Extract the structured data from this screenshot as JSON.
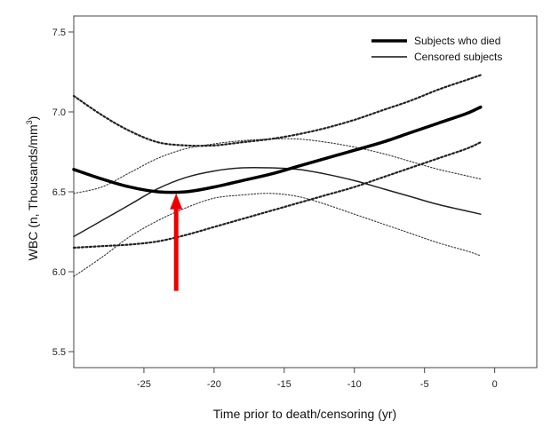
{
  "chart_data": {
    "type": "line",
    "title": "",
    "xlabel": "Time prior to death/censoring (yr)",
    "ylabel": "WBC (n, Thousands/mm³)",
    "ylabel_main": "WBC (n, Thousands/mm",
    "ylabel_sup": "3",
    "ylabel_close": ")",
    "xlim": [
      -30,
      3
    ],
    "ylim": [
      5.4,
      7.6
    ],
    "x_ticks": [
      -25,
      -20,
      -15,
      -10,
      -5,
      0
    ],
    "x_tick_labels": [
      "-25",
      "-20",
      "-15",
      "-10",
      "-5",
      "0"
    ],
    "y_ticks": [
      5.5,
      6.0,
      6.5,
      7.0,
      7.5
    ],
    "y_tick_labels": [
      "5.5",
      "6.0",
      "6.5",
      "7.0",
      "7.5"
    ],
    "grid": false,
    "legend_position": "top-right",
    "series": [
      {
        "name": "Subjects who died",
        "style": "thick-solid",
        "x": [
          -30,
          -28,
          -26,
          -24,
          -22,
          -20,
          -18,
          -16,
          -14,
          -12,
          -10,
          -8,
          -6,
          -4,
          -2,
          -1
        ],
        "values": [
          6.64,
          6.58,
          6.53,
          6.5,
          6.5,
          6.53,
          6.57,
          6.61,
          6.66,
          6.71,
          6.76,
          6.81,
          6.87,
          6.93,
          6.99,
          7.03
        ]
      },
      {
        "name": "Subjects who died 95% CI upper",
        "style": "thick-dotted",
        "x": [
          -30,
          -28,
          -26,
          -24,
          -22,
          -20,
          -18,
          -16,
          -14,
          -12,
          -10,
          -8,
          -6,
          -4,
          -2,
          -1
        ],
        "values": [
          7.1,
          6.98,
          6.88,
          6.81,
          6.79,
          6.79,
          6.81,
          6.83,
          6.86,
          6.9,
          6.95,
          7.01,
          7.07,
          7.14,
          7.2,
          7.23
        ]
      },
      {
        "name": "Subjects who died 95% CI lower",
        "style": "thick-dotted",
        "x": [
          -30,
          -28,
          -26,
          -24,
          -22,
          -20,
          -18,
          -16,
          -14,
          -12,
          -10,
          -8,
          -6,
          -4,
          -2,
          -1
        ],
        "values": [
          6.15,
          6.16,
          6.17,
          6.19,
          6.23,
          6.28,
          6.33,
          6.38,
          6.43,
          6.48,
          6.53,
          6.59,
          6.65,
          6.71,
          6.77,
          6.81
        ]
      },
      {
        "name": "Censored subjects",
        "style": "thin-solid",
        "x": [
          -30,
          -28,
          -26,
          -24,
          -22,
          -20,
          -18,
          -16,
          -14,
          -12,
          -10,
          -8,
          -6,
          -4,
          -2,
          -1
        ],
        "values": [
          6.22,
          6.32,
          6.42,
          6.52,
          6.59,
          6.63,
          6.65,
          6.65,
          6.64,
          6.61,
          6.57,
          6.52,
          6.47,
          6.42,
          6.38,
          6.36
        ]
      },
      {
        "name": "Censored subjects 95% CI upper",
        "style": "thin-dotted",
        "x": [
          -30,
          -28,
          -26,
          -24,
          -22,
          -20,
          -18,
          -16,
          -14,
          -12,
          -10,
          -8,
          -6,
          -4,
          -2,
          -1
        ],
        "values": [
          6.49,
          6.53,
          6.62,
          6.71,
          6.77,
          6.8,
          6.82,
          6.83,
          6.83,
          6.81,
          6.78,
          6.74,
          6.69,
          6.64,
          6.6,
          6.58
        ]
      },
      {
        "name": "Censored subjects 95% CI lower",
        "style": "thin-dotted",
        "x": [
          -30,
          -28,
          -26,
          -24,
          -22,
          -20,
          -18,
          -16,
          -14,
          -12,
          -10,
          -8,
          -6,
          -4,
          -2,
          -1
        ],
        "values": [
          5.97,
          6.09,
          6.22,
          6.32,
          6.4,
          6.46,
          6.48,
          6.49,
          6.47,
          6.42,
          6.36,
          6.3,
          6.24,
          6.18,
          6.13,
          6.1
        ]
      }
    ],
    "legend": [
      {
        "label": "Subjects who died",
        "style": "thick-solid"
      },
      {
        "label": "Censored subjects",
        "style": "thin-solid"
      }
    ],
    "annotation": {
      "type": "arrow",
      "color": "#ee0000",
      "from": {
        "x": -22.7,
        "y": 5.88
      },
      "to": {
        "x": -22.7,
        "y": 6.49
      }
    }
  }
}
